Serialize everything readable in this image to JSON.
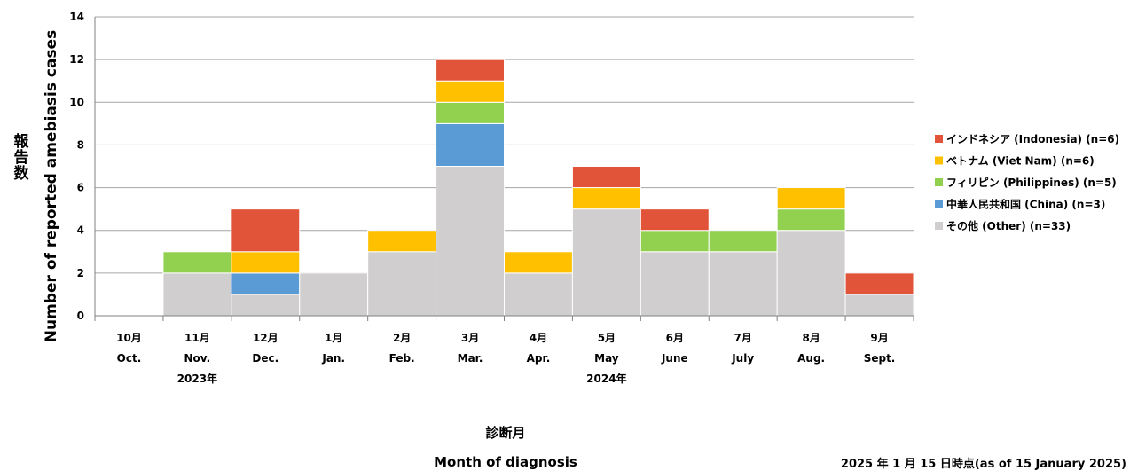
{
  "chart_data": {
    "type": "bar",
    "stacked": true,
    "categories": [
      {
        "jp": "10月",
        "en": "Oct."
      },
      {
        "jp": "11月",
        "en": "Nov."
      },
      {
        "jp": "12月",
        "en": "Dec."
      },
      {
        "jp": "1月",
        "en": "Jan."
      },
      {
        "jp": "2月",
        "en": "Feb."
      },
      {
        "jp": "3月",
        "en": "Mar."
      },
      {
        "jp": "4月",
        "en": "Apr."
      },
      {
        "jp": "5月",
        "en": "May"
      },
      {
        "jp": "6月",
        "en": "June"
      },
      {
        "jp": "7月",
        "en": "July"
      },
      {
        "jp": "8月",
        "en": "Aug."
      },
      {
        "jp": "9月",
        "en": "Sept."
      }
    ],
    "year_labels": [
      {
        "label": "2023年",
        "under_category": 1
      },
      {
        "label": "2024年",
        "under_category": 7
      }
    ],
    "series": [
      {
        "name": "その他 (Other) (n=33)",
        "color": "#d0cece",
        "values": [
          0,
          2,
          1,
          2,
          3,
          7,
          2,
          5,
          3,
          3,
          4,
          1
        ]
      },
      {
        "name": "中華人民共和国 (China) (n=3)",
        "color": "#5b9bd5",
        "values": [
          0,
          0,
          1,
          0,
          0,
          2,
          0,
          0,
          0,
          0,
          0,
          0
        ]
      },
      {
        "name": "フィリピン (Philippines) (n=5)",
        "color": "#92d050",
        "values": [
          0,
          1,
          0,
          0,
          0,
          1,
          0,
          0,
          1,
          1,
          1,
          0
        ]
      },
      {
        "name": "ベトナム (Viet Nam) (n=6)",
        "color": "#ffc000",
        "values": [
          0,
          0,
          1,
          0,
          1,
          1,
          1,
          1,
          0,
          0,
          1,
          0
        ]
      },
      {
        "name": "インドネシア (Indonesia) (n=6)",
        "color": "#e15439",
        "values": [
          0,
          0,
          2,
          0,
          0,
          1,
          0,
          1,
          1,
          0,
          0,
          1
        ]
      }
    ],
    "legend_order": [
      4,
      3,
      2,
      1,
      0
    ],
    "ylim": [
      0,
      14
    ],
    "yticks": [
      0,
      2,
      4,
      6,
      8,
      10,
      12,
      14
    ],
    "ylabel_jp": "報告数",
    "ylabel": "Number of reported amebiasis cases",
    "xlabel_jp": "診断月",
    "xlabel": "Month of diagnosis",
    "grid": true,
    "legend_position": "right",
    "note": "2025 年 1 月 15 日時点(as of 15 January 2025)"
  }
}
